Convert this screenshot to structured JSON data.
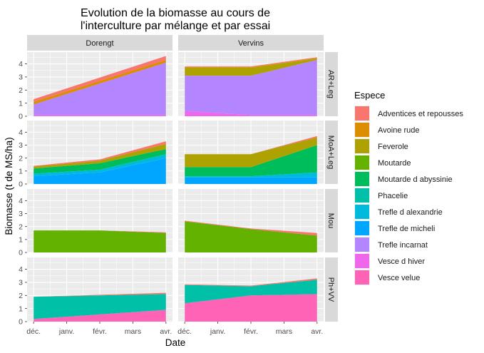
{
  "chart_data": {
    "type": "area",
    "stacked": true,
    "title_lines": [
      "Evolution de la biomasse au cours de",
      "l'interculture par mélange et par essai"
    ],
    "xlabel": "Date",
    "ylabel": "Biomasse (t de MS/ha)",
    "x_ticks": [
      "déc.",
      "janv.",
      "févr.",
      "mars",
      "avr."
    ],
    "y_ticks": [
      0,
      1,
      2,
      3,
      4
    ],
    "ylim": [
      0,
      4.9
    ],
    "columns": [
      "Dorengt",
      "Vervins"
    ],
    "rows": [
      "AR+Leg",
      "MoA+Leg",
      "Mou",
      "Ph+VV"
    ],
    "legend": {
      "title": "Espece",
      "position": "right",
      "items": [
        {
          "name": "Adventices et repousses",
          "color": "#F8766D"
        },
        {
          "name": "Avoine rude",
          "color": "#DB8E00"
        },
        {
          "name": "Feverole",
          "color": "#AEA200"
        },
        {
          "name": "Moutarde",
          "color": "#64B200"
        },
        {
          "name": "Moutarde d abyssinie",
          "color": "#00BD5C"
        },
        {
          "name": "Phacelie",
          "color": "#00C1A7"
        },
        {
          "name": "Trefle d alexandrie",
          "color": "#00BADE"
        },
        {
          "name": "Trefle de micheli",
          "color": "#00A6FF"
        },
        {
          "name": "Trefle incarnat",
          "color": "#B385FF"
        },
        {
          "name": "Vesce d hiver",
          "color": "#EF67EB"
        },
        {
          "name": "Vesce velue",
          "color": "#FF63B6"
        }
      ]
    },
    "panels": [
      {
        "row": "AR+Leg",
        "col": "Dorengt",
        "dates": [
          "déc.",
          "avr."
        ],
        "series": [
          {
            "name": "Vesce d hiver",
            "values": [
              0.1,
              0.1
            ]
          },
          {
            "name": "Trefle incarnat",
            "values": [
              0.8,
              4.0
            ]
          },
          {
            "name": "Avoine rude",
            "values": [
              0.2,
              0.2
            ]
          },
          {
            "name": "Adventices et repousses",
            "values": [
              0.2,
              0.3
            ]
          }
        ]
      },
      {
        "row": "AR+Leg",
        "col": "Vervins",
        "dates": [
          "déc.",
          "févr.",
          "avr."
        ],
        "series": [
          {
            "name": "Vesce d hiver",
            "values": [
              0.4,
              0.1,
              0.1
            ]
          },
          {
            "name": "Trefle incarnat",
            "values": [
              2.7,
              3.0,
              4.2
            ]
          },
          {
            "name": "Feverole",
            "values": [
              0.6,
              0.6,
              0.1
            ]
          },
          {
            "name": "Avoine rude",
            "values": [
              0.05,
              0.05,
              0.05
            ]
          },
          {
            "name": "Adventices et repousses",
            "values": [
              0.05,
              0.05,
              0.05
            ]
          }
        ]
      },
      {
        "row": "MoA+Leg",
        "col": "Dorengt",
        "dates": [
          "déc.",
          "févr.",
          "avr."
        ],
        "series": [
          {
            "name": "Trefle de micheli",
            "values": [
              0.6,
              0.9,
              2.0
            ]
          },
          {
            "name": "Trefle d alexandrie",
            "values": [
              0.2,
              0.2,
              0.3
            ]
          },
          {
            "name": "Moutarde d abyssinie",
            "values": [
              0.4,
              0.5,
              0.4
            ]
          },
          {
            "name": "Feverole",
            "values": [
              0.15,
              0.2,
              0.4
            ]
          },
          {
            "name": "Adventices et repousses",
            "values": [
              0.05,
              0.1,
              0.2
            ]
          }
        ]
      },
      {
        "row": "MoA+Leg",
        "col": "Vervins",
        "dates": [
          "déc.",
          "févr.",
          "avr."
        ],
        "series": [
          {
            "name": "Trefle de micheli",
            "values": [
              0.5,
              0.5,
              0.5
            ]
          },
          {
            "name": "Trefle d alexandrie",
            "values": [
              0.1,
              0.1,
              0.4
            ]
          },
          {
            "name": "Moutarde d abyssinie",
            "values": [
              0.7,
              0.7,
              2.1
            ]
          },
          {
            "name": "Feverole",
            "values": [
              1.0,
              1.0,
              0.6
            ]
          },
          {
            "name": "Adventices et repousses",
            "values": [
              0.0,
              0.0,
              0.1
            ]
          }
        ]
      },
      {
        "row": "Mou",
        "col": "Dorengt",
        "dates": [
          "déc.",
          "févr.",
          "avr."
        ],
        "series": [
          {
            "name": "Moutarde",
            "values": [
              1.7,
              1.7,
              1.5
            ]
          },
          {
            "name": "Adventices et repousses",
            "values": [
              0.0,
              0.0,
              0.05
            ]
          }
        ]
      },
      {
        "row": "Mou",
        "col": "Vervins",
        "dates": [
          "déc.",
          "févr.",
          "avr."
        ],
        "series": [
          {
            "name": "Moutarde",
            "values": [
              2.4,
              1.8,
              1.3
            ]
          },
          {
            "name": "Adventices et repousses",
            "values": [
              0.05,
              0.05,
              0.2
            ]
          }
        ]
      },
      {
        "row": "Ph+VV",
        "col": "Dorengt",
        "dates": [
          "déc.",
          "avr."
        ],
        "series": [
          {
            "name": "Vesce velue",
            "values": [
              0.2,
              0.9
            ]
          },
          {
            "name": "Phacelie",
            "values": [
              1.7,
              1.2
            ]
          },
          {
            "name": "Adventices et repousses",
            "values": [
              0.0,
              0.1
            ]
          }
        ]
      },
      {
        "row": "Ph+VV",
        "col": "Vervins",
        "dates": [
          "déc.",
          "févr.",
          "avr."
        ],
        "series": [
          {
            "name": "Vesce velue",
            "values": [
              1.4,
              2.0,
              2.1
            ]
          },
          {
            "name": "Phacelie",
            "values": [
              1.4,
              0.7,
              1.1
            ]
          },
          {
            "name": "Adventices et repousses",
            "values": [
              0.05,
              0.05,
              0.1
            ]
          }
        ]
      }
    ]
  }
}
